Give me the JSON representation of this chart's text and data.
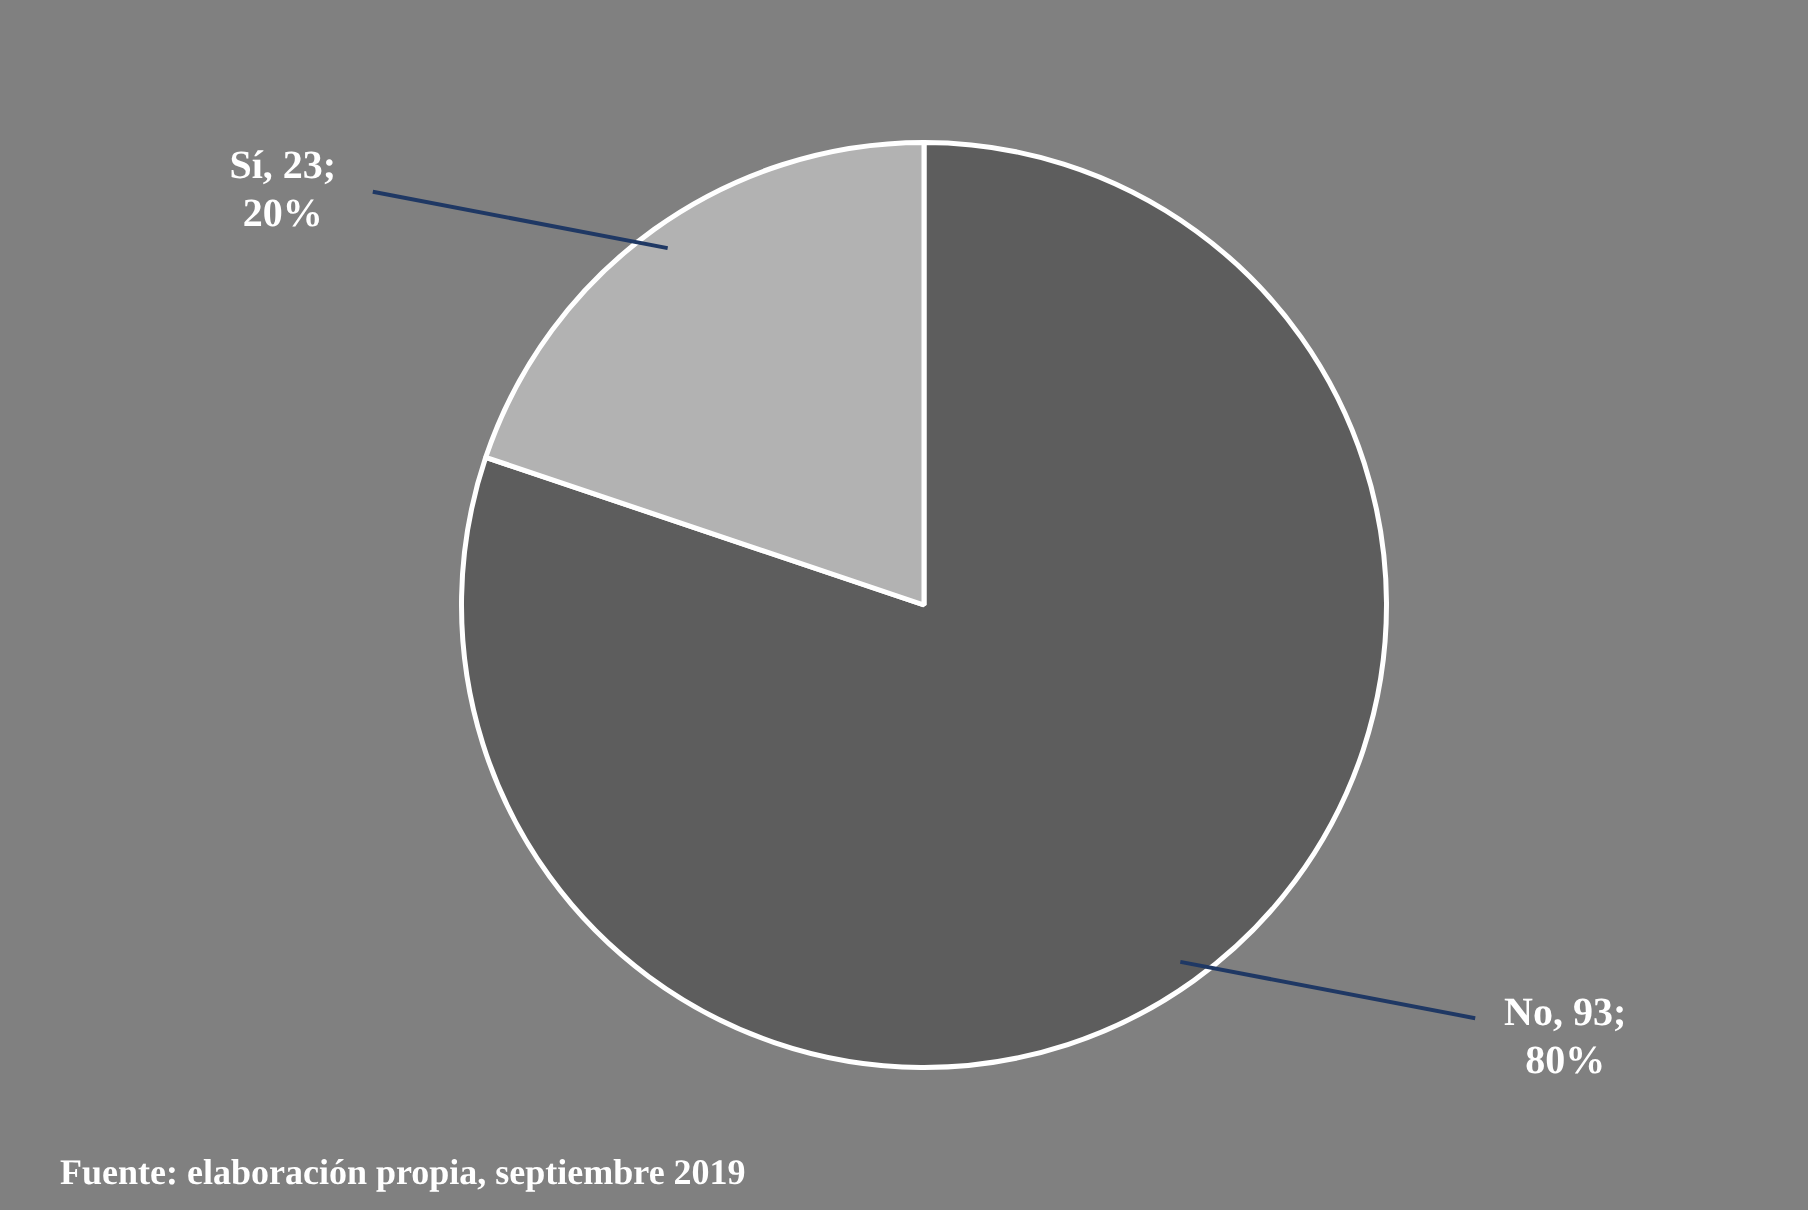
{
  "chart_data": {
    "type": "pie",
    "categories": [
      "No",
      "Sí"
    ],
    "values": [
      93,
      23
    ],
    "colors": [
      "#5d5d5d",
      "#b2b2b2"
    ],
    "value_labels": [
      "93; 80%",
      "23; 20%"
    ],
    "annotations": [
      "Fuente: elaboración propia, septiembre 2019"
    ]
  }
}
